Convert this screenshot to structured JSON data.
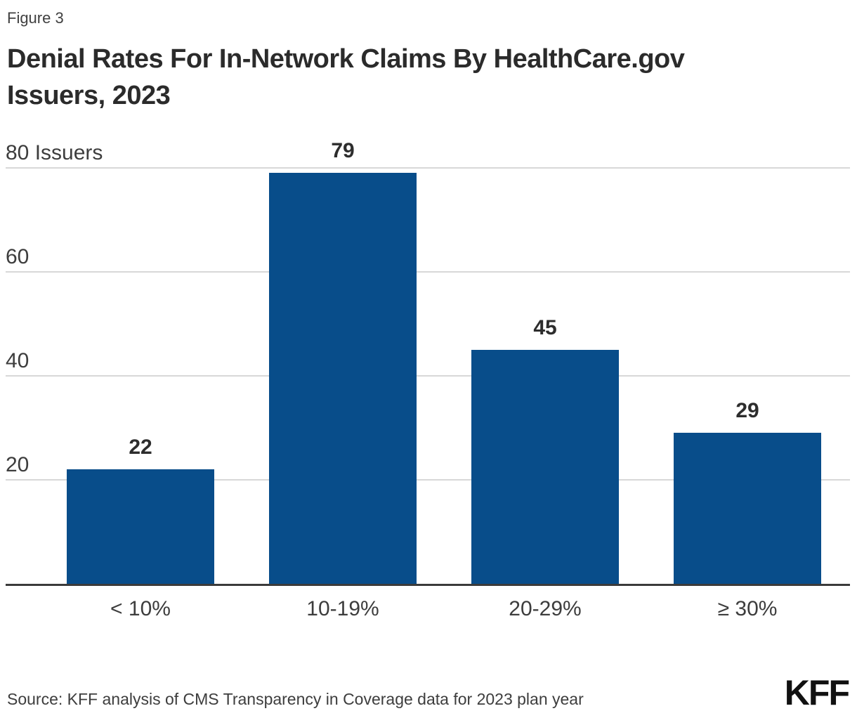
{
  "figure_label": "Figure 3",
  "title_lines": [
    "Denial Rates For In-Network Claims By HealthCare.gov",
    "Issuers, 2023"
  ],
  "source": "Source: KFF analysis of CMS Transparency in Coverage data for 2023 plan year",
  "logo_text": "KFF",
  "colors": {
    "bar": "#084D8A",
    "axis_line": "#3B3B3B",
    "gridline": "#D8D8D8",
    "tick_text": "#3D3D3D",
    "value_text": "#2D2D2D",
    "title_text": "#2B2B2B",
    "figure_text": "#404040",
    "source_text": "#3D3D3D",
    "logo": "#111111"
  },
  "chart_data": {
    "type": "bar",
    "title": "Denial Rates For In-Network Claims By HealthCare.gov Issuers, 2023",
    "categories": [
      "< 10%",
      "10-19%",
      "20-29%",
      "≥ 30%"
    ],
    "values": [
      22,
      79,
      45,
      29
    ],
    "xlabel": "",
    "ylabel": "Issuers",
    "ylim": [
      0,
      80
    ],
    "yticks": [
      {
        "value": 80,
        "label": "80 Issuers"
      },
      {
        "value": 60,
        "label": "60"
      },
      {
        "value": 40,
        "label": "40"
      },
      {
        "value": 20,
        "label": "20"
      }
    ],
    "grid": true,
    "legend": false,
    "data_labels": true
  }
}
